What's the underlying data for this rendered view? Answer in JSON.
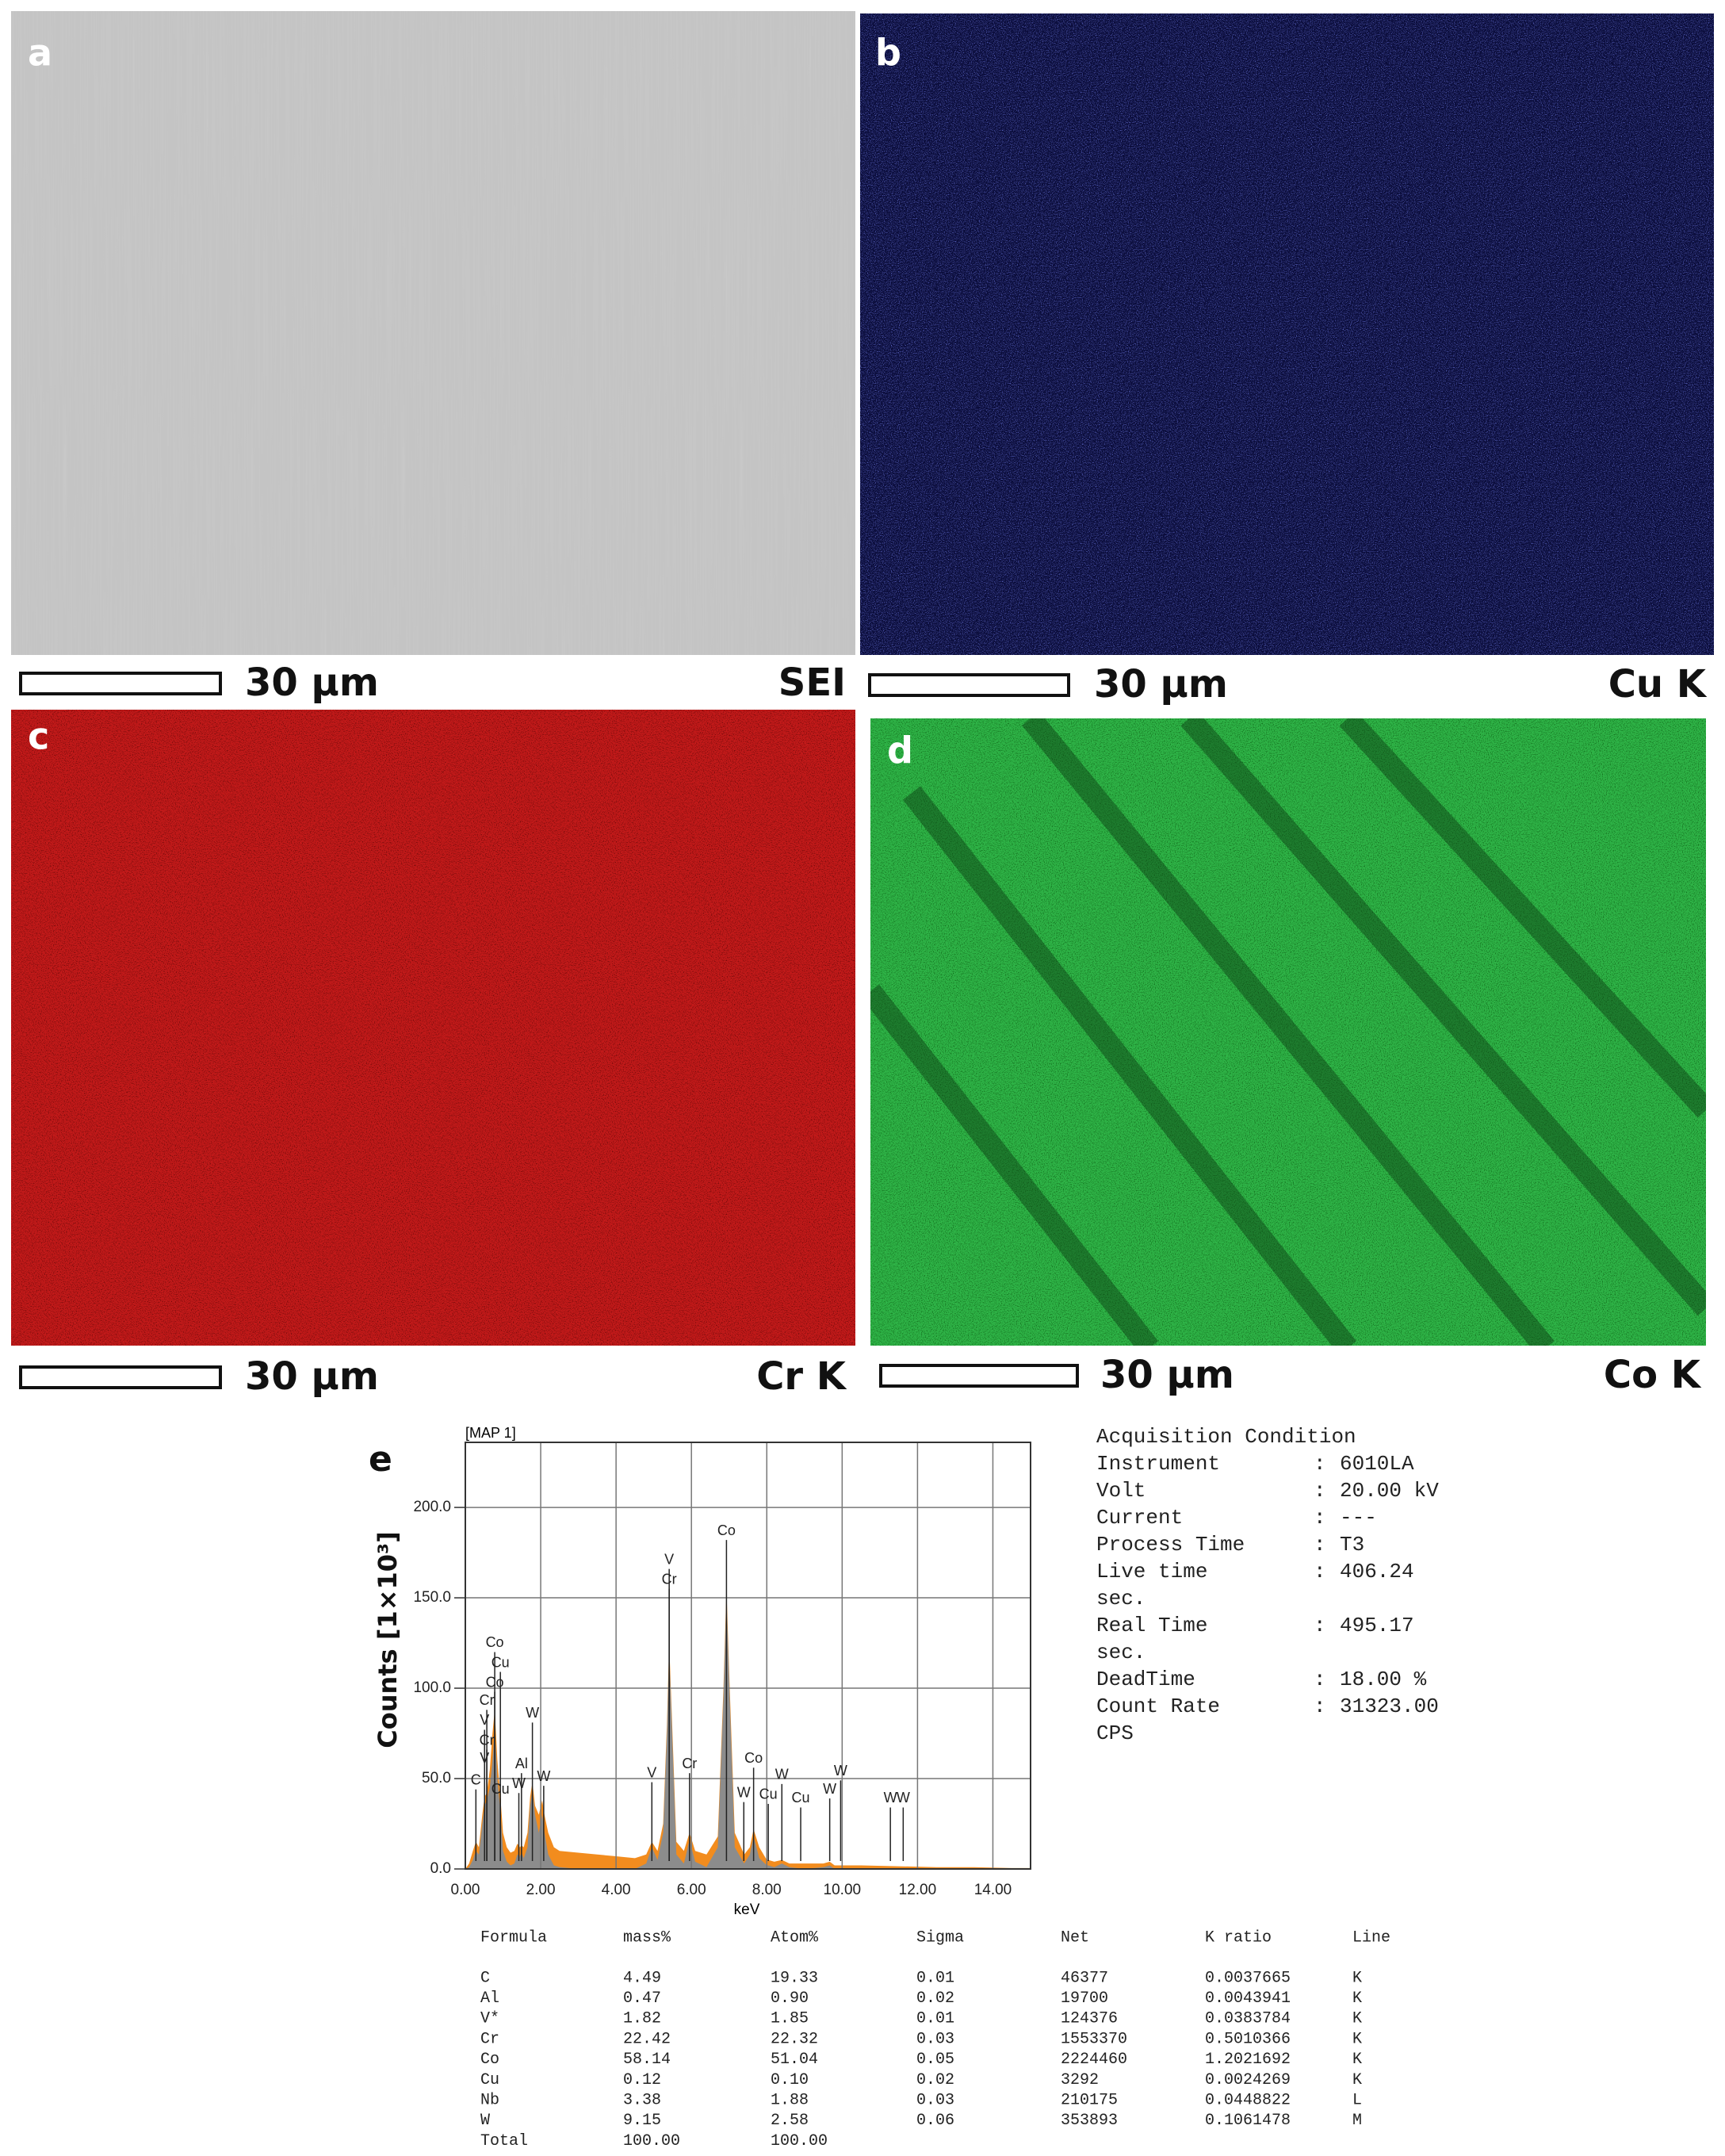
{
  "panels": [
    {
      "letter": "a",
      "scale": "30 μm",
      "signal": "SEI"
    },
    {
      "letter": "b",
      "scale": "30 μm",
      "signal": "Cu K"
    },
    {
      "letter": "c",
      "scale": "30 μm",
      "signal": "Cr K"
    },
    {
      "letter": "d",
      "scale": "30 μm",
      "signal": "Co K"
    }
  ],
  "chart_data": {
    "type": "area",
    "panel_label": "e",
    "title": "[MAP 1]",
    "x_label": "keV",
    "y_label": "Counts [1×10³]",
    "xlim": [
      0,
      15
    ],
    "ylim": [
      0,
      236
    ],
    "xticks": [
      {
        "value": 0,
        "label": "0.00"
      },
      {
        "value": 2,
        "label": "2.00"
      },
      {
        "value": 4,
        "label": "4.00"
      },
      {
        "value": 6,
        "label": "6.00"
      },
      {
        "value": 8,
        "label": "8.00"
      },
      {
        "value": 10,
        "label": "10.00"
      },
      {
        "value": 12,
        "label": "12.00"
      },
      {
        "value": 14,
        "label": "14.00"
      }
    ],
    "yticks": [
      {
        "value": 0,
        "label": "0.0"
      },
      {
        "value": 50,
        "label": "50.0"
      },
      {
        "value": 100,
        "label": "100.0"
      },
      {
        "value": 150,
        "label": "150.0"
      },
      {
        "value": 200,
        "label": "200.0"
      }
    ],
    "grid": true,
    "x": [
      0,
      0.1,
      0.2,
      0.28,
      0.36,
      0.45,
      0.51,
      0.57,
      0.65,
      0.72,
      0.78,
      0.85,
      0.93,
      1.0,
      1.1,
      1.2,
      1.3,
      1.38,
      1.45,
      1.49,
      1.55,
      1.65,
      1.72,
      1.78,
      1.85,
      1.95,
      2.04,
      2.1,
      2.2,
      2.35,
      2.5,
      3.0,
      3.5,
      4.0,
      4.5,
      4.8,
      4.95,
      5.1,
      5.25,
      5.35,
      5.41,
      5.48,
      5.6,
      5.8,
      5.95,
      6.1,
      6.4,
      6.7,
      6.85,
      6.93,
      7.0,
      7.15,
      7.4,
      7.55,
      7.65,
      7.8,
      8.0,
      8.04,
      8.2,
      8.4,
      8.6,
      9.0,
      9.5,
      9.67,
      9.8,
      10.5,
      11.5,
      12.5,
      13.5,
      14.5,
      15
    ],
    "series": [
      {
        "color": "#f28c1e",
        "values": [
          0,
          3,
          10,
          15,
          12,
          30,
          40,
          42,
          55,
          75,
          88,
          60,
          40,
          20,
          12,
          9,
          10,
          14,
          12,
          13,
          12,
          20,
          40,
          48,
          35,
          30,
          38,
          30,
          20,
          12,
          10,
          9,
          8,
          7,
          6,
          8,
          15,
          10,
          25,
          80,
          125,
          85,
          15,
          10,
          20,
          10,
          8,
          18,
          100,
          155,
          110,
          20,
          8,
          12,
          22,
          12,
          5,
          5,
          4,
          5,
          3,
          3,
          3,
          4,
          2,
          2,
          1.5,
          1,
          1,
          0.5,
          0.5
        ]
      },
      {
        "color": "#8c8c8c",
        "values": [
          0,
          1,
          5,
          10,
          8,
          25,
          35,
          38,
          45,
          60,
          78,
          50,
          32,
          10,
          4,
          2,
          3,
          8,
          7,
          9,
          6,
          12,
          35,
          44,
          30,
          20,
          30,
          20,
          8,
          2,
          1,
          0,
          0,
          0,
          0,
          3,
          12,
          5,
          20,
          75,
          120,
          80,
          8,
          3,
          16,
          4,
          1,
          12,
          95,
          150,
          105,
          12,
          3,
          8,
          18,
          6,
          2,
          2,
          1,
          3,
          1,
          0,
          1,
          2,
          0,
          0,
          0,
          0,
          0,
          0,
          0
        ]
      }
    ],
    "markers": [
      {
        "label": "Co",
        "x": 0.78,
        "y": 120
      },
      {
        "label": "Cu",
        "x": 0.93,
        "y": 109
      },
      {
        "label": "Co",
        "x": 0.78,
        "y": 98
      },
      {
        "label": "Cr",
        "x": 0.57,
        "y": 88
      },
      {
        "label": "V",
        "x": 0.51,
        "y": 77
      },
      {
        "label": "Cr",
        "x": 0.57,
        "y": 66
      },
      {
        "label": "V",
        "x": 0.51,
        "y": 56
      },
      {
        "label": "C",
        "x": 0.28,
        "y": 44
      },
      {
        "label": "Cu",
        "x": 0.93,
        "y": 39
      },
      {
        "label": "W",
        "x": 1.42,
        "y": 42
      },
      {
        "label": "Al",
        "x": 1.49,
        "y": 53
      },
      {
        "label": "W",
        "x": 1.78,
        "y": 81
      },
      {
        "label": "W",
        "x": 2.08,
        "y": 46
      },
      {
        "label": "V",
        "x": 4.95,
        "y": 48
      },
      {
        "label": "V",
        "x": 5.41,
        "y": 166
      },
      {
        "label": "Cr",
        "x": 5.41,
        "y": 155
      },
      {
        "label": "Cr",
        "x": 5.95,
        "y": 53
      },
      {
        "label": "Co",
        "x": 6.93,
        "y": 182
      },
      {
        "label": "Co",
        "x": 7.65,
        "y": 56
      },
      {
        "label": "W",
        "x": 7.39,
        "y": 37
      },
      {
        "label": "Cu",
        "x": 8.04,
        "y": 36
      },
      {
        "label": "W",
        "x": 8.4,
        "y": 47
      },
      {
        "label": "Cu",
        "x": 8.9,
        "y": 34
      },
      {
        "label": "W",
        "x": 9.67,
        "y": 39
      },
      {
        "label": "W",
        "x": 9.96,
        "y": 49
      },
      {
        "label": "W",
        "x": 11.28,
        "y": 34
      },
      {
        "label": "W",
        "x": 11.62,
        "y": 34
      }
    ]
  },
  "acquisition": {
    "title": "Acquisition Condition",
    "lines": [
      [
        "Instrument",
        ":",
        "6010LA"
      ],
      [
        "Volt",
        ":",
        "20.00 kV"
      ],
      [
        "Current",
        ":",
        "---"
      ],
      [
        "Process Time",
        ":",
        "T3"
      ],
      [
        "Live time",
        ":",
        "406.24"
      ],
      [
        "sec."
      ],
      [
        "Real Time",
        ":",
        "495.17"
      ],
      [
        "sec."
      ],
      [
        "DeadTime",
        ":",
        "18.00 %"
      ],
      [
        "Count Rate",
        ":",
        "31323.00"
      ],
      [
        "CPS"
      ]
    ]
  },
  "table": {
    "header": [
      "Formula",
      "mass%",
      "Atom%",
      "Sigma",
      "Net",
      "K ratio",
      "Line"
    ],
    "rows": [
      [
        "C",
        "4.49",
        "19.33",
        "0.01",
        "46377",
        "0.0037665",
        "K"
      ],
      [
        "Al",
        "0.47",
        "0.90",
        "0.02",
        "19700",
        "0.0043941",
        "K"
      ],
      [
        "V*",
        "1.82",
        "1.85",
        "0.01",
        "124376",
        "0.0383784",
        "K"
      ],
      [
        "Cr",
        "22.42",
        "22.32",
        "0.03",
        "1553370",
        "0.5010366",
        "K"
      ],
      [
        "Co",
        "58.14",
        "51.04",
        "0.05",
        "2224460",
        "1.2021692",
        "K"
      ],
      [
        "Cu",
        "0.12",
        "0.10",
        "0.02",
        "3292",
        "0.0024269",
        "K"
      ],
      [
        "Nb",
        "3.38",
        "1.88",
        "0.03",
        "210175",
        "0.0448822",
        "L"
      ],
      [
        "W",
        "9.15",
        "2.58",
        "0.06",
        "353893",
        "0.1061478",
        "M"
      ],
      [
        "Total",
        "100.00",
        "100.00"
      ]
    ]
  }
}
